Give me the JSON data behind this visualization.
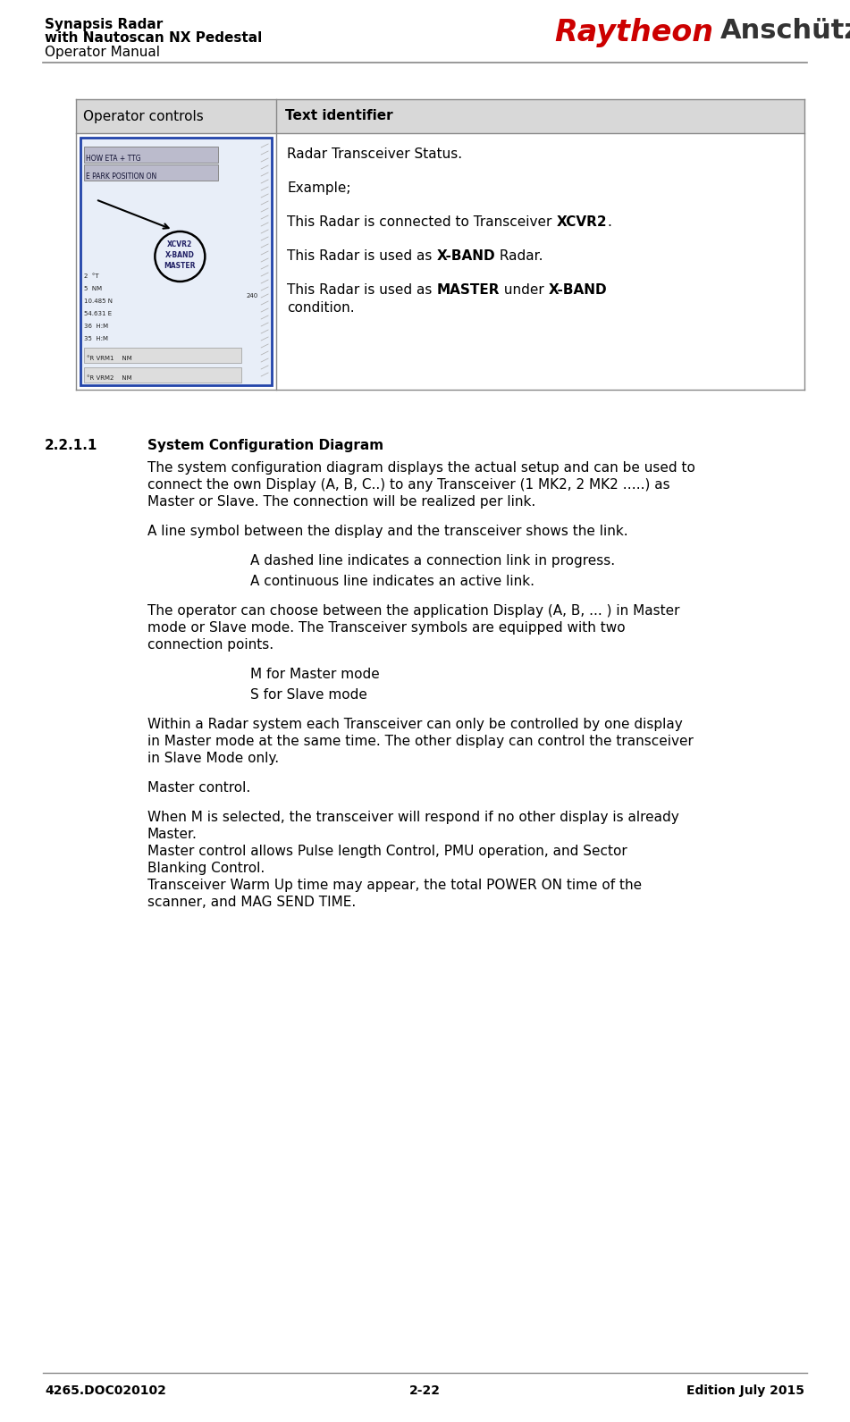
{
  "page_title_line1": "Synapsis Radar",
  "page_title_line2": "with Nautoscan NX Pedestal",
  "page_title_line3": "Operator Manual",
  "logo_raytheon": "Raytheon",
  "logo_anschutz": "Anschütz",
  "footer_left": "4265.DOC020102",
  "footer_center": "2-22",
  "footer_right": "Edition July 2015",
  "table_header_col1": "Operator controls",
  "table_header_col2": "Text identifier",
  "table_bg_header": "#d8d8d8",
  "table_border_color": "#888888",
  "section_number": "2.2.1.1",
  "section_heading": "System Configuration Diagram",
  "paragraph1": "The system configuration diagram displays the actual setup and can be used to\nconnect the own Display (A, B, C..) to any Transceiver (1 MK2, 2 MK2 …..) as\nMaster or Slave. The connection will be realized per link.",
  "paragraph2": "A line symbol between the display and the transceiver shows the link.",
  "indent_para1": "A dashed line indicates a connection link in progress.",
  "indent_para2": "A continuous line indicates an active link.",
  "paragraph3": "The operator can choose between the application Display (A, B, ... ) in Master\nmode or Slave mode. The Transceiver symbols are equipped with two\nconnection points.",
  "indent_para3": "M for Master mode",
  "indent_para4": "S for Slave mode",
  "paragraph4": "Within a Radar system each Transceiver can only be controlled by one display\nin Master mode at the same time. The other display can control the transceiver\nin Slave Mode only.",
  "paragraph5": "Master control.",
  "paragraph6_lines": [
    "When M is selected, the transceiver will respond if no other display is already",
    "Master.",
    "Master control allows Pulse length Control, PMU operation, and Sector",
    "Blanking Control.",
    "Transceiver Warm Up time may appear, the total POWER ON time of the",
    "scanner, and MAG SEND TIME."
  ],
  "font_size_body": 11,
  "font_size_title": 11,
  "font_size_logo_ray": 24,
  "font_size_logo_ans": 22,
  "font_size_footer": 10,
  "text_color": "#000000",
  "logo_red": "#cc0000",
  "logo_dark": "#333333"
}
